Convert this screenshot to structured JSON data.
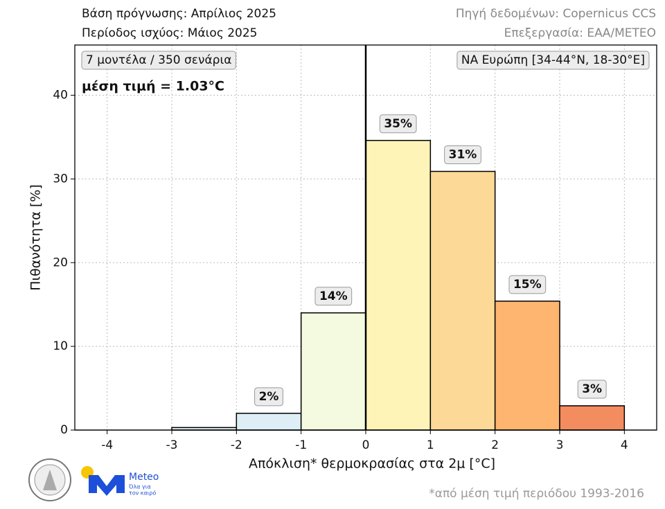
{
  "chart_data": {
    "type": "histogram",
    "header_left": [
      "Βάση πρόγνωσης: Απρίλιος 2025",
      "Περίοδος ισχύος: Μάιος 2025"
    ],
    "header_right": [
      "Πηγή δεδομένων: Copernicus CCS",
      "Επεξεργασία: ΕΑΑ/METEO"
    ],
    "annotations": [
      "7 μοντέλα / 350 σενάρια",
      "μέση τιμή = 1.03°C",
      "ΝΑ Ευρώπη [34-44°N, 18-30°E]"
    ],
    "x_label": "Απόκλιση* θερμοκρασίας στα 2μ [°C]",
    "y_label": "Πιθανότητα [%]",
    "footnote": "*από μέση τιμή περιόδου 1993-2016",
    "bins": [
      -4,
      -3,
      -2,
      -1,
      0,
      1,
      2,
      3,
      4
    ],
    "values": [
      0,
      0.3,
      2.0,
      14.0,
      34.6,
      30.9,
      15.4,
      2.9
    ],
    "value_labels": [
      null,
      null,
      "2%",
      "14%",
      "35%",
      "31%",
      "15%",
      "3%"
    ],
    "colors": [
      "#ffffff",
      "#e2f1f8",
      "#ddeef6",
      "#f3fadf",
      "#fff4b8",
      "#fcd996",
      "#fdb56f",
      "#f38c5f"
    ],
    "vline": 0,
    "xlim": [
      -4.5,
      4.5
    ],
    "ylim": [
      0,
      46
    ],
    "xticks": [
      -4,
      -3,
      -2,
      -1,
      0,
      1,
      2,
      3,
      4
    ],
    "yticks": [
      0,
      10,
      20,
      30,
      40
    ],
    "grid": true
  },
  "logo": {
    "name": "Meteo",
    "tagline": [
      "Όλα για",
      "τον καιρό"
    ]
  }
}
